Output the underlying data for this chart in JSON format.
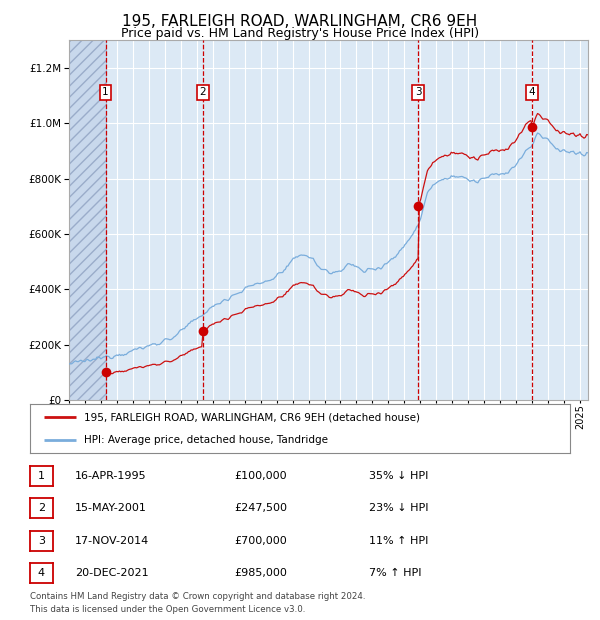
{
  "title": "195, FARLEIGH ROAD, WARLINGHAM, CR6 9EH",
  "subtitle": "Price paid vs. HM Land Registry's House Price Index (HPI)",
  "title_fontsize": 11,
  "subtitle_fontsize": 9,
  "ylim": [
    0,
    1300000
  ],
  "xlim_start": 1993.0,
  "xlim_end": 2025.5,
  "background_color": "#dce9f5",
  "hatched_region_end": 1995.29,
  "purchases": [
    {
      "year": 1995.29,
      "price": 100000,
      "label": "1"
    },
    {
      "year": 2001.37,
      "price": 247500,
      "label": "2"
    },
    {
      "year": 2014.88,
      "price": 700000,
      "label": "3"
    },
    {
      "year": 2021.97,
      "price": 985000,
      "label": "4"
    }
  ],
  "vline_color": "#cc0000",
  "sale_marker_color": "#cc0000",
  "sale_marker_size": 7,
  "hpi_line_color": "#7aaddc",
  "price_line_color": "#cc1111",
  "legend_entries": [
    "195, FARLEIGH ROAD, WARLINGHAM, CR6 9EH (detached house)",
    "HPI: Average price, detached house, Tandridge"
  ],
  "footnote": "Contains HM Land Registry data © Crown copyright and database right 2024.\nThis data is licensed under the Open Government Licence v3.0.",
  "table_rows": [
    {
      "num": "1",
      "date": "16-APR-1995",
      "price": "£100,000",
      "hpi": "35% ↓ HPI"
    },
    {
      "num": "2",
      "date": "15-MAY-2001",
      "price": "£247,500",
      "hpi": "23% ↓ HPI"
    },
    {
      "num": "3",
      "date": "17-NOV-2014",
      "price": "£700,000",
      "hpi": "11% ↑ HPI"
    },
    {
      "num": "4",
      "date": "20-DEC-2021",
      "price": "£985,000",
      "hpi": "7% ↑ HPI"
    }
  ]
}
